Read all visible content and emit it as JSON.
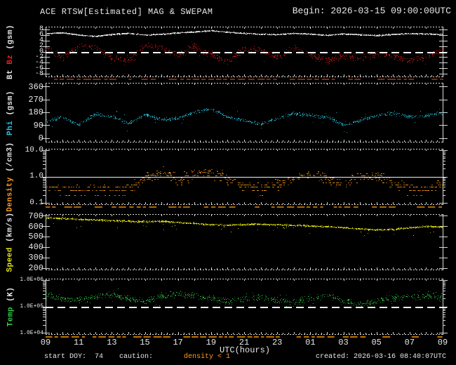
{
  "window": {
    "title": "ACE RTSW[Estimated] MAG & SWEPAM",
    "begin_label": "Begin: 2026-03-15 09:00:00UTC"
  },
  "footer": {
    "start_doy": "start DOY:  74",
    "caution_label": "caution:",
    "caution_value": "density < 1",
    "created": "created: 2026-03-16 08:40:07UTC"
  },
  "colors": {
    "background": "#000000",
    "axis": "#d8d8d8",
    "bt": "#e8e8e8",
    "bz": "#e42020",
    "phi": "#2ac4de",
    "density": "#ff9c1e",
    "speed": "#e8e812",
    "temp": "#30d048",
    "caution_orange": "#c27400",
    "caution_mag": "#8a2800"
  },
  "chart_data": {
    "type": "scatter",
    "title": "ACE RTSW[Estimated] MAG & SWEPAM",
    "begin": "2026-03-15 09:00:00UTC",
    "created": "2026-03-16 08:40:07UTC",
    "start_doy": 74,
    "x_axis": {
      "label": "UTC(hours)",
      "tick_labels": [
        "09",
        "11",
        "13",
        "15",
        "17",
        "19",
        "21",
        "23",
        "01",
        "03",
        "05",
        "07",
        "09"
      ],
      "span_hours": 24,
      "anchor_step_hours": 1
    },
    "panels": [
      {
        "id": "mag",
        "ylabel_parts": [
          {
            "text": "Bt",
            "color": "#e8e8e8"
          },
          {
            "text": "Bz",
            "color": "#e42020"
          },
          {
            "text": "(gsm)",
            "color": "#e8e8e8"
          }
        ],
        "scale": "linear",
        "ymin": -8,
        "ymax": 8,
        "yticks": [
          {
            "label": "8",
            "value": 8
          },
          {
            "label": "6",
            "value": 6
          },
          {
            "label": "4",
            "value": 4
          },
          {
            "label": "2",
            "value": 2
          },
          {
            "label": "0",
            "value": 0
          },
          {
            "label": "-2",
            "value": -2
          },
          {
            "label": "-4",
            "value": -4
          },
          {
            "label": "-6",
            "value": -6
          },
          {
            "label": "-8",
            "value": -8
          }
        ],
        "refline": {
          "value": 0,
          "style": "dashed"
        },
        "series": [
          {
            "name": "Bt",
            "color": "#e8e8e8",
            "hourly": [
              6.6,
              6.9,
              6.1,
              5.6,
              6.3,
              6.7,
              6.1,
              6.4,
              6.9,
              7.2,
              7.7,
              7.1,
              6.7,
              6.4,
              6.2,
              6.7,
              6.4,
              6.0,
              6.5,
              6.2,
              5.9,
              6.3,
              6.6,
              6.5,
              6.3
            ]
          },
          {
            "name": "Bz",
            "color": "#e42020",
            "hourly": [
              1.5,
              -2.5,
              2.0,
              1.5,
              -2.0,
              -3.0,
              2.5,
              1.5,
              -1.5,
              2.0,
              -1.0,
              -3.5,
              1.0,
              0.5,
              -2.0,
              1.5,
              -1.0,
              -3.5,
              -1.5,
              -2.5,
              -0.5,
              -1.5,
              -3.0,
              -2.0,
              1.0
            ]
          }
        ]
      },
      {
        "id": "phi",
        "ylabel_parts": [
          {
            "text": "Phi",
            "color": "#2ac4de"
          },
          {
            "text": "(gsm)",
            "color": "#e8e8e8"
          }
        ],
        "scale": "linear",
        "ymin": 0,
        "ymax": 360,
        "yticks": [
          {
            "label": "360",
            "value": 360
          },
          {
            "label": "270",
            "value": 270
          },
          {
            "label": "180",
            "value": 180
          },
          {
            "label": "90",
            "value": 90
          },
          {
            "label": "0",
            "value": 0
          }
        ],
        "series": [
          {
            "name": "Phi",
            "color": "#2ac4de",
            "hourly": [
              115,
              150,
              95,
              170,
              150,
              105,
              165,
              130,
              140,
              185,
              205,
              150,
              125,
              100,
              140,
              175,
              160,
              150,
              95,
              125,
              160,
              175,
              150,
              160,
              175
            ]
          }
        ]
      },
      {
        "id": "density",
        "ylabel_parts": [
          {
            "text": "Density",
            "color": "#ff9c1e"
          },
          {
            "text": "(/cm3)",
            "color": "#e8e8e8"
          }
        ],
        "scale": "log",
        "ymin": 0.1,
        "ymax": 10,
        "yticks": [
          {
            "label": "10.0",
            "value": 10
          },
          {
            "label": "1.0",
            "value": 1
          },
          {
            "label": "0.1",
            "value": 0.1
          }
        ],
        "refline": {
          "value": 1,
          "style": "solid"
        },
        "series": [
          {
            "name": "Density",
            "color": "#ff9c1e",
            "hourly": [
              0.35,
              0.3,
              0.3,
              0.35,
              0.3,
              0.35,
              0.9,
              1.4,
              0.7,
              1.2,
              1.5,
              0.8,
              0.4,
              0.35,
              0.5,
              0.9,
              1.2,
              0.8,
              0.6,
              0.9,
              1.1,
              0.5,
              0.35,
              0.3,
              0.5
            ]
          }
        ]
      },
      {
        "id": "speed",
        "ylabel_parts": [
          {
            "text": "Speed",
            "color": "#e8e812"
          },
          {
            "text": "(km/s)",
            "color": "#e8e8e8"
          }
        ],
        "scale": "linear",
        "ymin": 200,
        "ymax": 700,
        "yticks": [
          {
            "label": "700",
            "value": 700
          },
          {
            "label": "600",
            "value": 600
          },
          {
            "label": "500",
            "value": 500
          },
          {
            "label": "400",
            "value": 400
          },
          {
            "label": "300",
            "value": 300
          },
          {
            "label": "200",
            "value": 200
          }
        ],
        "series": [
          {
            "name": "Speed",
            "color": "#e8e812",
            "hourly": [
              685,
              676,
              668,
              662,
              656,
              650,
              645,
              650,
              638,
              628,
              618,
              612,
              618,
              622,
              616,
              610,
              604,
              598,
              588,
              576,
              566,
              572,
              586,
              600,
              595
            ]
          }
        ]
      },
      {
        "id": "temp",
        "ylabel_parts": [
          {
            "text": "Temp",
            "color": "#30d048"
          },
          {
            "text": "(K)",
            "color": "#e8e8e8"
          }
        ],
        "scale": "log",
        "ymin": 10000,
        "ymax": 1000000,
        "yticks": [
          {
            "label": "1.0E+06",
            "value": 1000000
          },
          {
            "label": "1.0E+05",
            "value": 100000
          },
          {
            "label": "1.0E+04",
            "value": 10000
          }
        ],
        "refline": {
          "value": 100000,
          "style": "dashed"
        },
        "series": [
          {
            "name": "Temp",
            "color": "#30d048",
            "hourly": [
              260000,
              200000,
              180000,
              230000,
              280000,
              200000,
              160000,
              250000,
              300000,
              260000,
              200000,
              150000,
              190000,
              230000,
              170000,
              140000,
              200000,
              260000,
              160000,
              130000,
              160000,
              210000,
              230000,
              270000,
              220000
            ]
          }
        ]
      }
    ],
    "caution_rows": [
      {
        "under_panel": "mag",
        "color": "#8a2800"
      },
      {
        "under_panel": "density",
        "color": "#b06800"
      },
      {
        "under_panel": "temp",
        "color": "#c27400"
      }
    ]
  }
}
